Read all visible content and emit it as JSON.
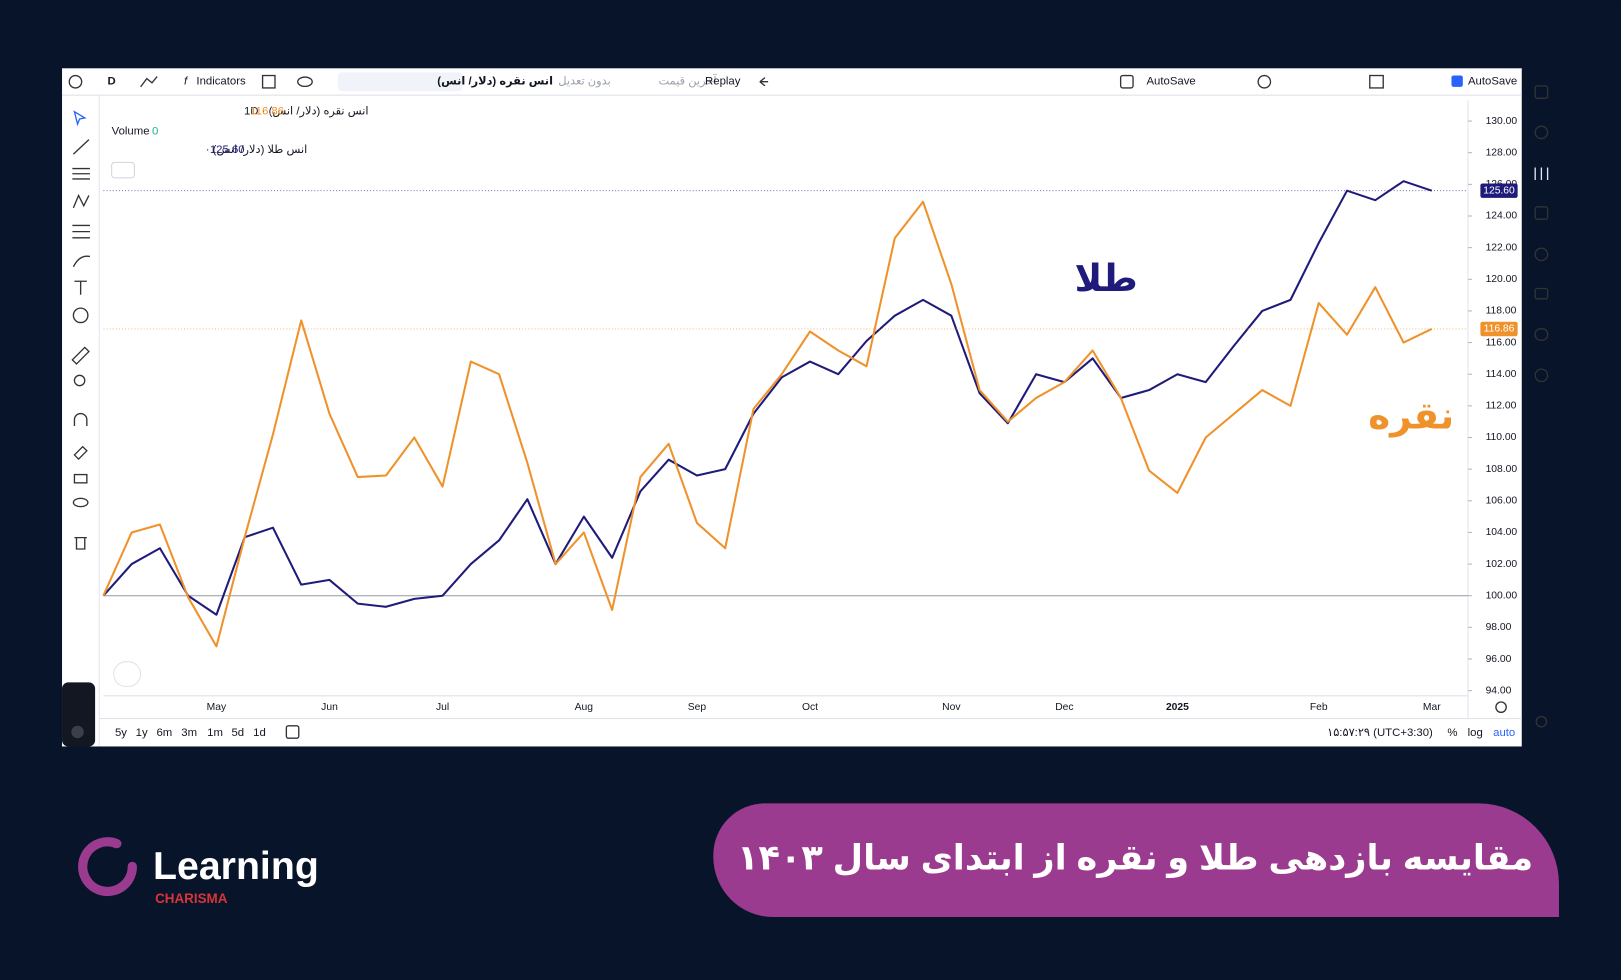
{
  "toolbar": {
    "interval": "D",
    "indicators": "Indicators",
    "symbol": "انس نقره (دلار/ انس)",
    "adjustment": "بدون تعدیل",
    "price_type": "آخرین قیمت",
    "replay": "Replay",
    "autosave": "AutoSave",
    "autosave_checked": "AutoSave"
  },
  "legend": [
    {
      "label": "انس نقره (دلار/ انس) · 1D",
      "value": "116.86"
    },
    {
      "label": "Volume",
      "value": "0"
    },
    {
      "label": "انس طلا (دلار/ انس) ·",
      "value": "125.60"
    }
  ],
  "chart_data": {
    "type": "line",
    "categories": [
      null,
      null,
      null,
      null,
      "May",
      null,
      null,
      null,
      "Jun",
      null,
      null,
      null,
      "Jul",
      null,
      null,
      null,
      null,
      "Aug",
      null,
      null,
      null,
      "Sep",
      null,
      null,
      null,
      "Oct",
      null,
      null,
      null,
      null,
      "Nov",
      null,
      null,
      null,
      "Dec",
      null,
      null,
      null,
      "2025",
      null,
      null,
      null,
      null,
      "Feb",
      null,
      null,
      null,
      "Mar"
    ],
    "series": [
      {
        "name": "طلا",
        "color": "#1f1b7a",
        "values": [
          100,
          102,
          103,
          100,
          98.8,
          103.7,
          104.3,
          100.7,
          101,
          99.5,
          99.3,
          99.8,
          100,
          102,
          103.5,
          106.1,
          102,
          105,
          102.4,
          106.6,
          108.6,
          107.6,
          108,
          111.5,
          113.8,
          114.8,
          114,
          116.1,
          117.7,
          118.7,
          117.7,
          112.8,
          110.9,
          114,
          113.5,
          115,
          112.5,
          113,
          114,
          113.5,
          115.8,
          118,
          118.7,
          122.3,
          125.6,
          125,
          126.2,
          125.6
        ]
      },
      {
        "name": "نقره",
        "color": "#f0922c",
        "values": [
          100,
          104,
          104.5,
          99.9,
          96.8,
          103.7,
          110.2,
          117.4,
          111.5,
          107.5,
          107.6,
          110,
          106.9,
          114.8,
          114,
          108.4,
          102,
          104,
          99.1,
          107.5,
          109.6,
          104.6,
          103,
          111.8,
          114,
          116.7,
          115.5,
          114.5,
          122.6,
          124.9,
          119.7,
          113,
          111,
          112.5,
          113.5,
          115.5,
          112.5,
          107.9,
          106.5,
          110,
          111.5,
          113,
          112,
          118.5,
          116.5,
          119.5,
          116,
          116.86
        ]
      }
    ],
    "ylim": [
      93.74,
      131.31
    ],
    "yticks": [
      {
        "value": 94,
        "label": "94.00"
      },
      {
        "value": 96,
        "label": "96.00"
      },
      {
        "value": 98,
        "label": "98.00"
      },
      {
        "value": 100,
        "label": "100.00"
      },
      {
        "value": 102,
        "label": "102.00"
      },
      {
        "value": 104,
        "label": "104.00"
      },
      {
        "value": 106,
        "label": "106.00"
      },
      {
        "value": 108,
        "label": "108.00"
      },
      {
        "value": 110,
        "label": "110.00"
      },
      {
        "value": 112,
        "label": "112.00"
      },
      {
        "value": 114,
        "label": "114.00"
      },
      {
        "value": 116,
        "label": "116.00"
      },
      {
        "value": 118,
        "label": "118.00"
      },
      {
        "value": 120,
        "label": "120.00"
      },
      {
        "value": 122,
        "label": "122.00"
      },
      {
        "value": 124,
        "label": "124.00"
      },
      {
        "value": 126,
        "label": "126.00"
      },
      {
        "value": 128,
        "label": "128.00"
      },
      {
        "value": 130,
        "label": "130.00"
      }
    ],
    "baseline": 100
  },
  "bottom_bar": {
    "ranges": [
      "5y",
      "1y",
      "6m",
      "3m",
      "1m",
      "5d",
      "1d"
    ],
    "clock": "۱۵:۵۷:۲۹ (UTC+3:30)",
    "percent": "%",
    "log": "log",
    "auto": "auto"
  },
  "banner": {
    "title": "مقایسه بازدهی طلا و نقره از ابتدای سال ۱۴۰۳",
    "brand": "Learning",
    "brand_sub": "CHARISMA"
  }
}
